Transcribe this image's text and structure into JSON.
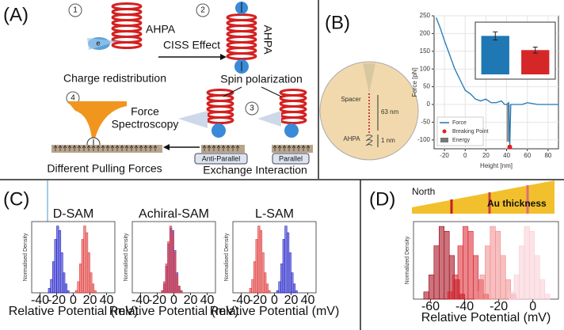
{
  "panel_a": {
    "label": "(A)",
    "steps": [
      1,
      2,
      3,
      4
    ],
    "helix_label_1": "AHPA",
    "helix_label_2": "AHPA",
    "electron": "e",
    "arrow_label": "CISS Effect",
    "charge": "Charge redistribution",
    "spin": "Spin polarization",
    "force_lines": [
      "Force",
      "Spectroscopy"
    ],
    "anti_parallel": "Anti-Parallel",
    "parallel": "Parallel",
    "exchange": "Exchange Interaction",
    "pulling": "Different Pulling Forces"
  },
  "panel_b": {
    "label": "(B)",
    "diagram": {
      "spacer": "Spacer",
      "length_1": "63 nm",
      "length_2": "1 nm",
      "molecule": "AHPA"
    },
    "chart": {
      "type": "line",
      "xlabel": "Height [nm]",
      "ylabel": "Force [pN]",
      "xlim": [
        -30,
        90
      ],
      "xticks": [
        -20,
        0,
        20,
        40,
        60,
        80
      ],
      "ylim": [
        -125,
        250
      ],
      "yticks": [
        -100,
        -50,
        0,
        50,
        100,
        150,
        200,
        250
      ],
      "grid": true,
      "series": [
        {
          "name": "Force",
          "color": "#1f77b4",
          "x": [
            -28,
            -24,
            -20,
            -15,
            -10,
            -5,
            0,
            5,
            10,
            15,
            20,
            25,
            30,
            35,
            38,
            40,
            42,
            43,
            44,
            48,
            55,
            60,
            70,
            80,
            90
          ],
          "values": [
            245,
            215,
            180,
            140,
            100,
            70,
            40,
            30,
            15,
            10,
            15,
            5,
            5,
            10,
            0,
            0,
            5,
            -120,
            0,
            0,
            0,
            5,
            0,
            0,
            0
          ]
        },
        {
          "name": "Breaking Point",
          "color": "#e02020",
          "marker": "dot",
          "x": [
            43
          ],
          "values": [
            -120
          ]
        }
      ],
      "energy": {
        "name": "Energy",
        "color": "#777777",
        "x": [
          40,
          43
        ],
        "values": [
          0,
          -105
        ]
      },
      "inset": {
        "type": "bar",
        "ylim": [
          0,
          250
        ],
        "values": [
          190,
          120
        ],
        "errors": [
          20,
          15
        ],
        "colors": [
          "#1f77b4",
          "#d62728"
        ]
      }
    }
  },
  "panel_c": {
    "label": "(C)",
    "charts": [
      {
        "type": "histogram",
        "title": "D-SAM",
        "xlabel": "Relative Potential (mV)",
        "ylabel": "Normalised Density",
        "xlim": [
          -50,
          50
        ],
        "xticks": [
          -40,
          -20,
          0,
          20,
          40
        ],
        "ylim": [
          0,
          32
        ],
        "series": [
          {
            "color": "#2424c8",
            "bins": [
              -30,
              -27.5,
              -25,
              -22.5,
              -20,
              -17.5,
              -15,
              -12.5,
              -10,
              -7.5,
              -5
            ],
            "values": [
              2,
              6,
              14,
              24,
              30,
              28,
              18,
              9,
              4,
              1
            ]
          },
          {
            "color": "#e03a3a",
            "bins": [
              2.5,
              5,
              7.5,
              10,
              12.5,
              15,
              17.5,
              20,
              22.5,
              25,
              27.5
            ],
            "values": [
              1,
              5,
              13,
              24,
              30,
              27,
              18,
              9,
              4,
              1
            ]
          }
        ]
      },
      {
        "type": "histogram",
        "title": "Achiral-SAM",
        "xlabel": "Relative Potential (mV)",
        "ylabel": "Normalised Density",
        "xlim": [
          -50,
          50
        ],
        "xticks": [
          -40,
          -20,
          0,
          20,
          40
        ],
        "ylim": [
          0,
          32
        ],
        "series": [
          {
            "color": "#2424c8",
            "bins": [
              -15,
              -12.5,
              -10,
              -7.5,
              -5,
              -2.5,
              0,
              2.5,
              5,
              7.5,
              10
            ],
            "values": [
              1,
              4,
              12,
              22,
              29,
              28,
              19,
              9,
              3,
              1
            ]
          },
          {
            "color": "#e03a3a",
            "bins": [
              -15,
              -12.5,
              -10,
              -7.5,
              -5,
              -2.5,
              0,
              2.5,
              5,
              7.5,
              10
            ],
            "values": [
              1,
              5,
              13,
              23,
              30,
              27,
              18,
              8,
              3,
              1
            ]
          }
        ]
      },
      {
        "type": "histogram",
        "title": "L-SAM",
        "xlabel": "Relative Potential (mV)",
        "ylabel": "Normalised Density",
        "xlim": [
          -50,
          50
        ],
        "xticks": [
          -40,
          -20,
          0,
          20,
          40
        ],
        "ylim": [
          0,
          32
        ],
        "series": [
          {
            "color": "#e03a3a",
            "bins": [
              -30,
              -27.5,
              -25,
              -22.5,
              -20,
              -17.5,
              -15,
              -12.5,
              -10,
              -7.5,
              -5
            ],
            "values": [
              2,
              6,
              14,
              24,
              30,
              28,
              18,
              9,
              4,
              1
            ]
          },
          {
            "color": "#2424c8",
            "bins": [
              2.5,
              5,
              7.5,
              10,
              12.5,
              15,
              17.5,
              20,
              22.5,
              25,
              27.5
            ],
            "values": [
              1,
              5,
              13,
              24,
              30,
              27,
              18,
              9,
              4,
              1
            ]
          }
        ]
      }
    ]
  },
  "panel_d": {
    "label": "(D)",
    "gauge_left": "North",
    "gauge_label": "Au thickness",
    "chart": {
      "type": "histogram",
      "xlabel": "Relative Potential (mV)",
      "ylabel": "Normalized Density",
      "xlim": [
        -70,
        15
      ],
      "xticks": [
        -60,
        -40,
        -20,
        0
      ],
      "ylim": [
        0,
        32
      ],
      "series": [
        {
          "color": "#a00010",
          "bins": [
            -64,
            -61,
            -58,
            -55,
            -52,
            -49,
            -46,
            -43,
            -40
          ],
          "values": [
            3,
            10,
            22,
            30,
            28,
            18,
            8,
            2
          ]
        },
        {
          "color": "#d8202c",
          "bins": [
            -50,
            -47,
            -44,
            -41,
            -38,
            -35,
            -32,
            -29,
            -26
          ],
          "values": [
            3,
            10,
            22,
            30,
            28,
            18,
            8,
            2
          ]
        },
        {
          "color": "#f08a8a",
          "bins": [
            -34,
            -31,
            -28,
            -25,
            -22,
            -19,
            -16,
            -13,
            -10
          ],
          "values": [
            3,
            10,
            22,
            30,
            28,
            18,
            8,
            2
          ]
        },
        {
          "color": "#f8ccd4",
          "bins": [
            -14,
            -11,
            -8,
            -5,
            -2,
            1,
            4,
            7,
            10
          ],
          "values": [
            3,
            10,
            22,
            30,
            28,
            18,
            8,
            2
          ]
        }
      ]
    }
  }
}
